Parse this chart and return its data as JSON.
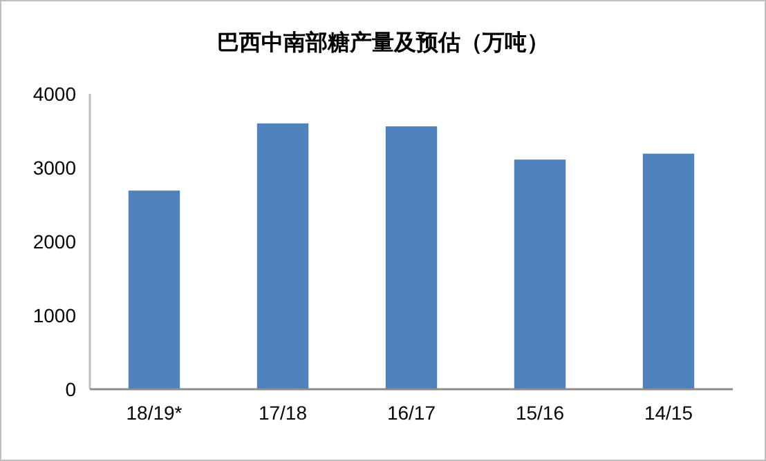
{
  "chart_data": {
    "type": "bar",
    "title": "巴西中南部糖产量及预估（万吨）",
    "categories": [
      "18/19*",
      "17/18",
      "16/17",
      "15/16",
      "14/15"
    ],
    "values": [
      2690,
      3600,
      3560,
      3110,
      3190
    ],
    "color": "#4f81bd",
    "ylim": [
      0,
      4000
    ],
    "yticks": [
      0,
      1000,
      2000,
      3000,
      4000
    ]
  }
}
